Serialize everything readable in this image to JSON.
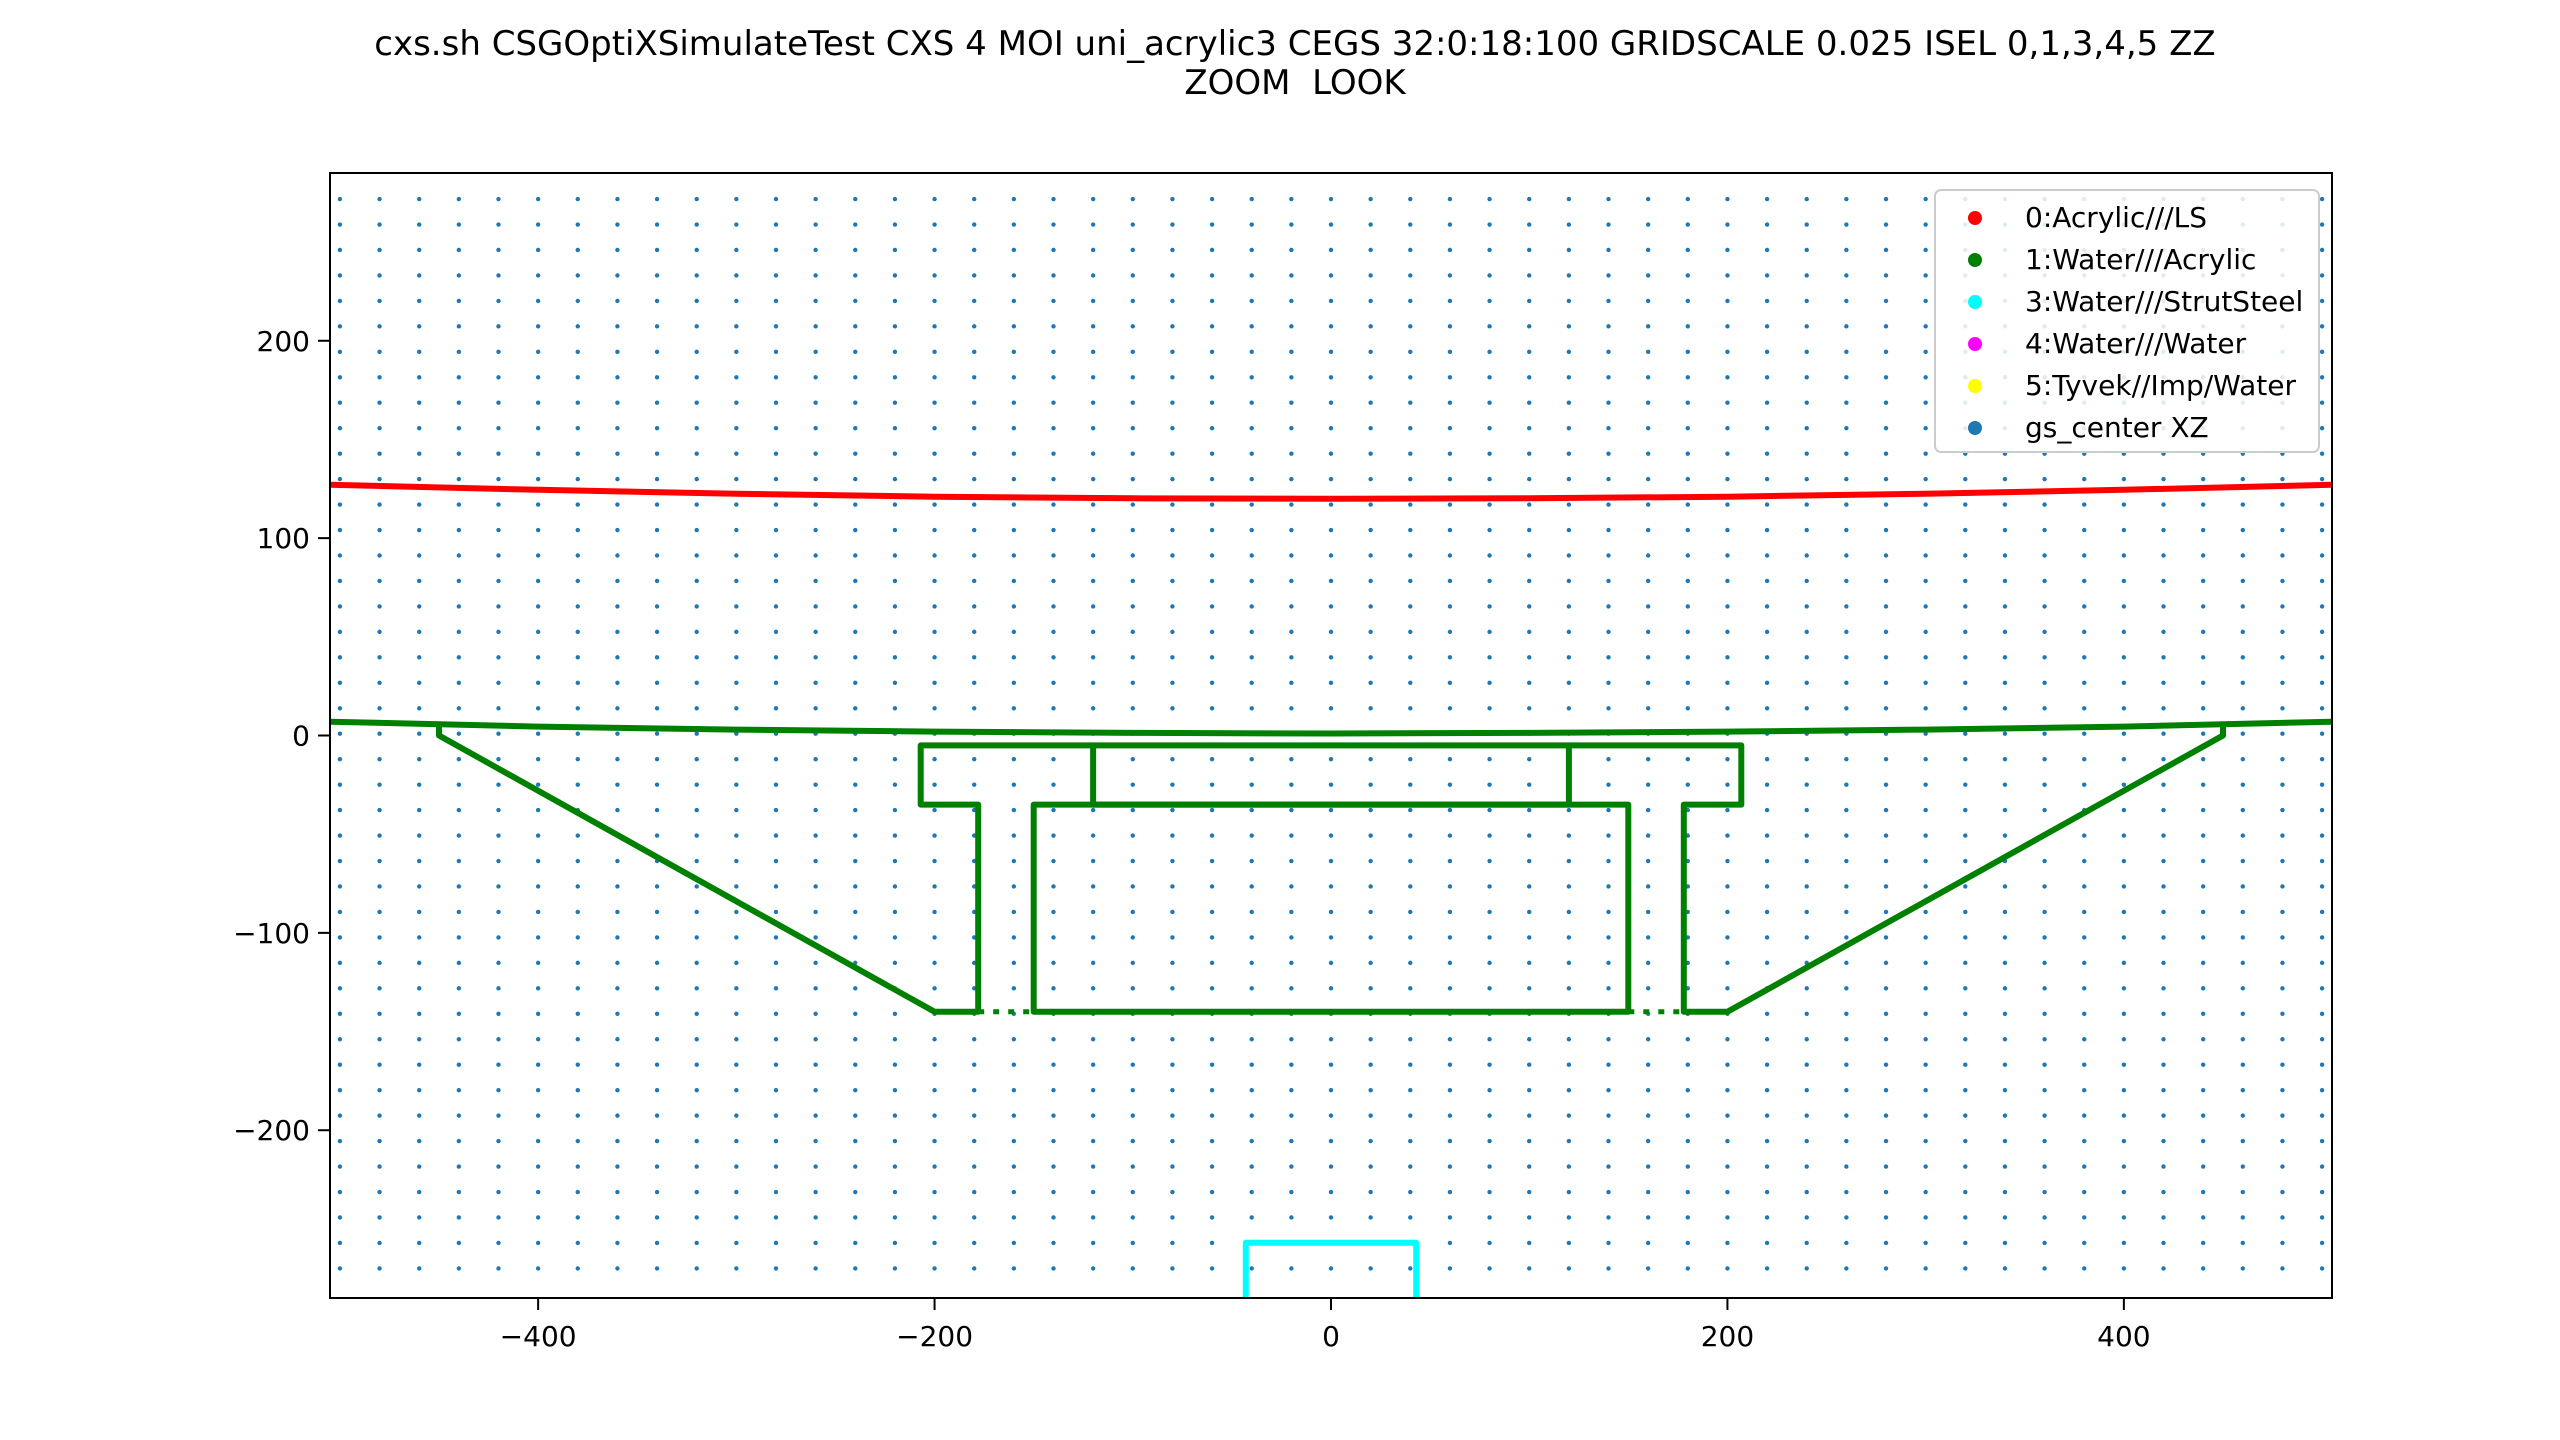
{
  "chart_data": {
    "type": "scatter",
    "title": "cxs.sh CSGOptiXSimulateTest CXS 4 MOI uni_acrylic3 CEGS 32:0:18:100 GRIDSCALE 0.025 ISEL 0,1,3,4,5 ZZ",
    "subtitle": "ZOOM  LOOK",
    "xlabel": "",
    "ylabel": "",
    "xlim": [
      -505,
      505
    ],
    "ylim": [
      -285,
      285
    ],
    "xticks": [
      -400,
      -200,
      0,
      200,
      400
    ],
    "yticks": [
      -200,
      -100,
      0,
      100,
      200
    ],
    "xtick_labels": [
      "−400",
      "−200",
      "0",
      "200",
      "400"
    ],
    "ytick_labels": [
      "−200",
      "−100",
      "0",
      "100",
      "200"
    ],
    "grid": false,
    "legend_position": "top-right",
    "series": [
      {
        "name": "0:Acrylic///LS",
        "color": "#ff0000",
        "paths": [
          [
            [
              -505,
              127
            ],
            [
              -400,
              124.5
            ],
            [
              -300,
              122.5
            ],
            [
              -200,
              121
            ],
            [
              -100,
              120.2
            ],
            [
              0,
              120
            ],
            [
              100,
              120.2
            ],
            [
              200,
              121
            ],
            [
              300,
              122.5
            ],
            [
              400,
              124.5
            ],
            [
              505,
              127
            ]
          ]
        ]
      },
      {
        "name": "1:Water///Acrylic",
        "color": "#008000",
        "paths": [
          [
            [
              -505,
              7
            ],
            [
              -400,
              4.5
            ],
            [
              -300,
              3
            ],
            [
              -200,
              2
            ],
            [
              -100,
              1.3
            ],
            [
              0,
              1
            ],
            [
              100,
              1.3
            ],
            [
              200,
              2
            ],
            [
              300,
              3
            ],
            [
              400,
              4.5
            ],
            [
              505,
              7
            ]
          ],
          [
            [
              -450,
              5
            ],
            [
              -450,
              0
            ],
            [
              -200,
              -140
            ],
            [
              -178,
              -140
            ],
            [
              -178,
              -35
            ],
            [
              -207,
              -35
            ],
            [
              -207,
              -5
            ],
            [
              207,
              -5
            ],
            [
              207,
              -35
            ],
            [
              178,
              -35
            ],
            [
              178,
              -140
            ],
            [
              200,
              -140
            ],
            [
              450,
              0
            ],
            [
              450,
              5
            ]
          ],
          [
            [
              -120,
              -5
            ],
            [
              -120,
              -35
            ],
            [
              120,
              -35
            ],
            [
              120,
              -5
            ]
          ],
          [
            [
              -150,
              -140
            ],
            [
              150,
              -140
            ],
            [
              150,
              -35
            ],
            [
              -150,
              -35
            ],
            [
              -150,
              -140
            ]
          ]
        ],
        "dashed_paths": [
          [
            [
              -178,
              -140
            ],
            [
              -150,
              -140
            ]
          ],
          [
            [
              150,
              -140
            ],
            [
              178,
              -140
            ]
          ]
        ]
      },
      {
        "name": "3:Water///StrutSteel",
        "color": "#00ffff",
        "paths": [
          [
            [
              -43,
              -285
            ],
            [
              -43,
              -257
            ],
            [
              43,
              -257
            ],
            [
              43,
              -285
            ]
          ]
        ]
      },
      {
        "name": "4:Water///Water",
        "color": "#ff00ff",
        "paths": []
      },
      {
        "name": "5:Tyvek//Imp/Water",
        "color": "#ffff00",
        "paths": []
      },
      {
        "name": "gs_center XZ",
        "color": "#1f77b4",
        "grid_x": {
          "start": -500,
          "step": 20,
          "count": 51
        },
        "grid_z": {
          "start": -270,
          "step": 12.9,
          "count": 43
        }
      }
    ]
  }
}
